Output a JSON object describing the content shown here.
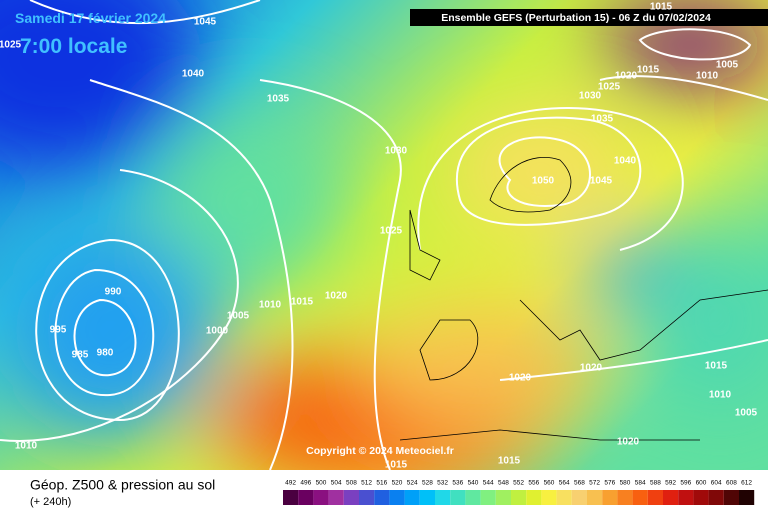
{
  "header": {
    "date": "Samedi 17 février 2024",
    "time": "7:00 locale",
    "banner": "Ensemble GEFS  (Perturbation 15)  - 06 Z du 07/02/2024"
  },
  "isobar_labels": [
    "1045",
    "1025",
    "1040",
    "1035",
    "1030",
    "1025",
    "990",
    "995",
    "985",
    "980",
    "1000",
    "1005",
    "1010",
    "1015",
    "1020",
    "1010",
    "1015",
    "1015",
    "1020",
    "1020",
    "1020",
    "1015",
    "1010",
    "1005",
    "1050",
    "1045",
    "1040",
    "1035",
    "1030",
    "1025",
    "1020",
    "1015",
    "1010",
    "1005",
    "1015"
  ],
  "copyright": "Copyright © 2024 Meteociel.fr",
  "footer": {
    "title": "Géop. Z500 & pression au sol",
    "lead": "(+ 240h)"
  },
  "scale": {
    "labels": [
      492,
      496,
      500,
      504,
      508,
      512,
      516,
      520,
      524,
      528,
      532,
      536,
      540,
      544,
      548,
      552,
      556,
      560,
      564,
      568,
      572,
      576,
      580,
      584,
      588,
      592,
      596,
      600,
      604,
      608,
      612
    ],
    "colors": [
      "#4a0040",
      "#6a0060",
      "#8a1080",
      "#a030a0",
      "#7a40c0",
      "#4a50d0",
      "#2060e0",
      "#0a80f0",
      "#00a0f8",
      "#00c0f8",
      "#20d8e8",
      "#40e0c0",
      "#60e8a0",
      "#80f080",
      "#a0f060",
      "#c0f040",
      "#e0f030",
      "#f8f040",
      "#f8e060",
      "#f8d070",
      "#f8c050",
      "#f8a030",
      "#f88020",
      "#f86010",
      "#f04010",
      "#e02010",
      "#c01010",
      "#a00a0a",
      "#800808",
      "#500505",
      "#200202"
    ]
  }
}
